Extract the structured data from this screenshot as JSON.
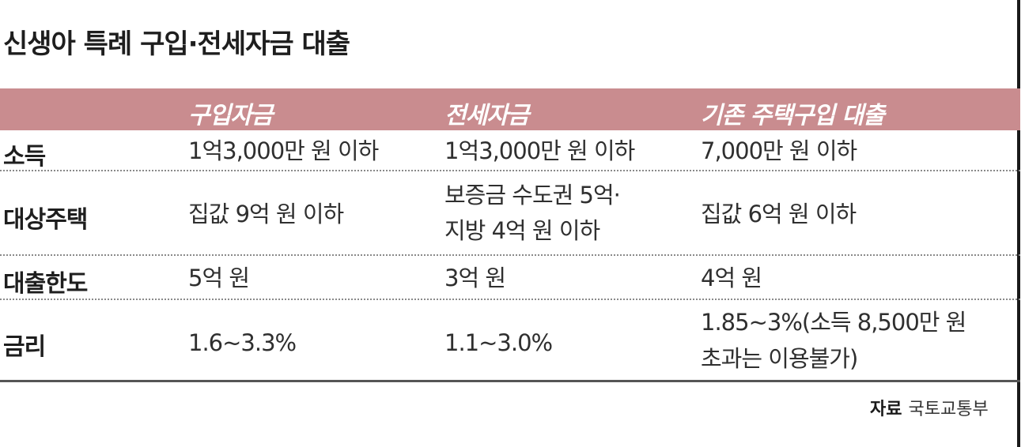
{
  "title": "신생아 특례 구입·전세자금 대출",
  "columns": [
    "구입자금",
    "전세자금",
    "기존 주택구입 대출"
  ],
  "rows": [
    {
      "label": "소득",
      "cells": [
        [
          "1억3,000만 원 이하"
        ],
        [
          "1억3,000만 원 이하"
        ],
        [
          "7,000만 원 이하"
        ]
      ]
    },
    {
      "label": "대상주택",
      "cells": [
        [
          "집값 9억 원 이하"
        ],
        [
          "보증금 수도권 5억·",
          "지방 4억 원 이하"
        ],
        [
          "집값 6억 원 이하"
        ]
      ]
    },
    {
      "label": "대출한도",
      "cells": [
        [
          "5억 원"
        ],
        [
          "3억 원"
        ],
        [
          "4억 원"
        ]
      ]
    },
    {
      "label": "금리",
      "cells": [
        [
          "1.6~3.3%"
        ],
        [
          "1.1~3.0%"
        ],
        [
          "1.85~3%(소득 8,500만 원",
          "초과는 이용불가)"
        ]
      ]
    }
  ],
  "source": {
    "label": "자료",
    "value": "국토교통부"
  },
  "colors": {
    "header_bg": "#c98c8f",
    "header_text": "#ffffff"
  }
}
